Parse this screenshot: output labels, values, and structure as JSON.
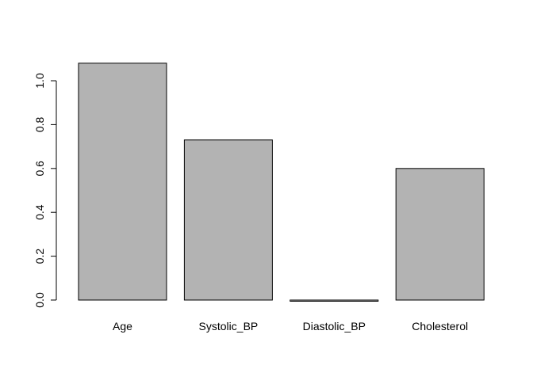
{
  "chart_data": {
    "type": "bar",
    "title": "",
    "xlabel": "",
    "ylabel": "",
    "categories": [
      "Age",
      "Systolic_BP",
      "Diastolic_BP",
      "Cholesterol"
    ],
    "values": [
      1.08,
      0.73,
      -0.005,
      0.6
    ],
    "ylim": [
      0,
      1.0
    ],
    "yticks": [
      0.0,
      0.2,
      0.4,
      0.6,
      0.8,
      1.0
    ],
    "ytick_labels": [
      "0.0",
      "0.2",
      "0.4",
      "0.6",
      "0.8",
      "1.0"
    ],
    "grid": false,
    "legend": "none",
    "colors": {
      "bar_fill": "#b3b3b3",
      "bar_stroke": "#000000",
      "axis": "#000000",
      "background": "#ffffff"
    }
  }
}
